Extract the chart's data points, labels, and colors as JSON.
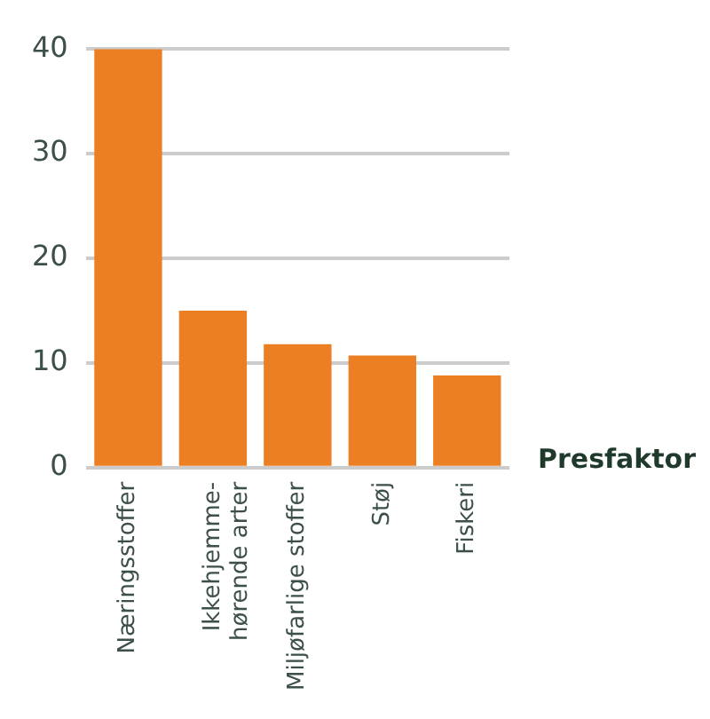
{
  "chart_data": {
    "type": "bar",
    "xlabel": "Presfaktor",
    "categories": [
      "Næringsstoffer",
      "Ikkehjemme-\nhørende arter",
      "Miljøfarlige stoffer",
      "Støj",
      "Fiskeri"
    ],
    "values": [
      40,
      15,
      11.8,
      10.7,
      8.8
    ],
    "color": "#ec7f23",
    "ylim": [
      0,
      40
    ],
    "yticks": [
      0,
      10,
      20,
      30,
      40
    ],
    "grid": "y"
  }
}
